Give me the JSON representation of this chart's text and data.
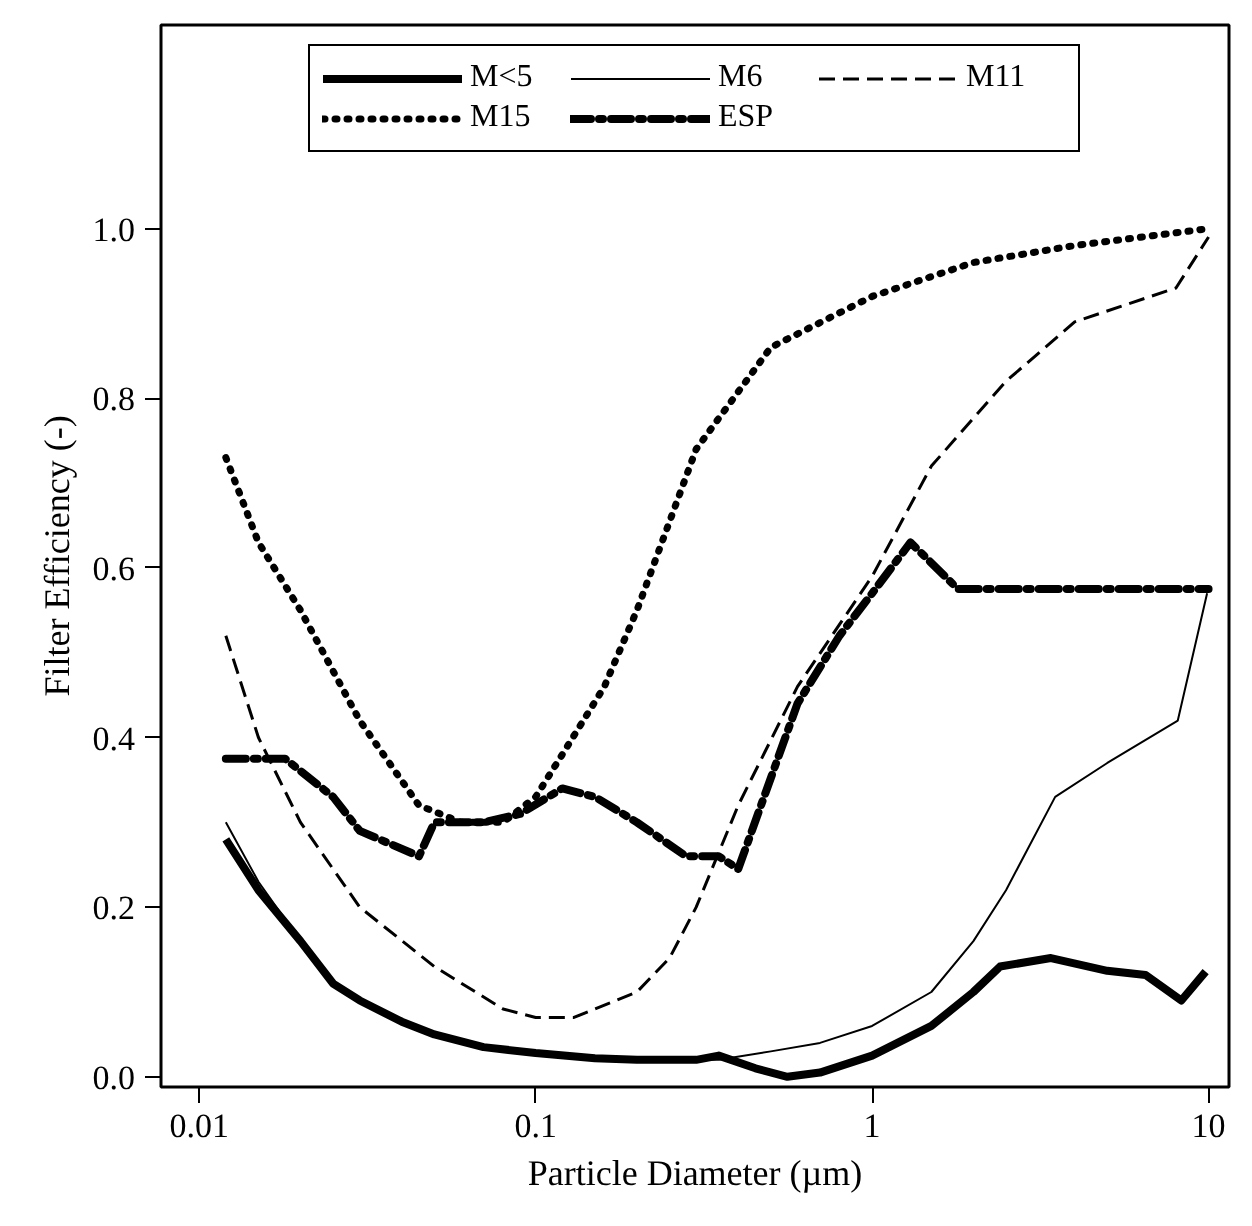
{
  "chart_data": {
    "type": "line",
    "xlabel": "Particle Diameter (µm)",
    "ylabel": "Filter Efficiency (-)",
    "log": "x",
    "xlim": [
      0.0077,
      11.5
    ],
    "xticks": [
      0.01,
      0.1,
      1,
      10
    ],
    "ylim": [
      -0.012,
      1.24
    ],
    "yticks": [
      {
        "value": 0,
        "label": "0.0"
      },
      {
        "value": 0.2,
        "label": "0.2"
      },
      {
        "value": 0.4,
        "label": "0.4"
      },
      {
        "value": 0.6,
        "label": "0.6"
      },
      {
        "value": 0.8,
        "label": "0.8"
      },
      {
        "value": 1.0,
        "label": "1.0"
      }
    ],
    "grid": false,
    "legend": "top",
    "marker": "none",
    "series": [
      {
        "name": "M<5",
        "color": "#000000",
        "line_style": "solid",
        "x": [
          0.012,
          0.015,
          0.02,
          0.025,
          0.03,
          0.04,
          0.05,
          0.07,
          0.1,
          0.15,
          0.2,
          0.3,
          0.35,
          0.45,
          0.56,
          0.7,
          1,
          1.5,
          2,
          2.4,
          3.4,
          5,
          6.5,
          8.3,
          9.8
        ],
        "values": [
          0.28,
          0.22,
          0.16,
          0.11,
          0.09,
          0.065,
          0.05,
          0.035,
          0.028,
          0.022,
          0.02,
          0.02,
          0.025,
          0.01,
          0.0,
          0.005,
          0.025,
          0.06,
          0.1,
          0.13,
          0.14,
          0.125,
          0.12,
          0.09,
          0.124
        ]
      },
      {
        "name": "M6",
        "color": "#000000",
        "line_style": "solid",
        "x": [
          0.012,
          0.015,
          0.02,
          0.025,
          0.03,
          0.04,
          0.05,
          0.07,
          0.1,
          0.15,
          0.2,
          0.3,
          0.35,
          0.5,
          0.7,
          1,
          1.5,
          2,
          2.5,
          3.5,
          5,
          8.1,
          9.9
        ],
        "values": [
          0.3,
          0.23,
          0.16,
          0.11,
          0.09,
          0.065,
          0.05,
          0.035,
          0.028,
          0.022,
          0.02,
          0.02,
          0.02,
          0.03,
          0.04,
          0.06,
          0.1,
          0.16,
          0.22,
          0.33,
          0.37,
          0.42,
          0.57
        ]
      },
      {
        "name": "M11",
        "color": "#000000",
        "line_style": "dashed",
        "x": [
          0.012,
          0.015,
          0.02,
          0.03,
          0.05,
          0.08,
          0.1,
          0.13,
          0.2,
          0.25,
          0.3,
          0.4,
          0.6,
          1,
          1.5,
          2.5,
          4,
          8,
          10
        ],
        "values": [
          0.52,
          0.4,
          0.3,
          0.2,
          0.13,
          0.08,
          0.07,
          0.07,
          0.1,
          0.14,
          0.2,
          0.32,
          0.46,
          0.59,
          0.72,
          0.82,
          0.89,
          0.93,
          0.99
        ]
      },
      {
        "name": "M15",
        "color": "#000000",
        "line_style": "dotted",
        "x": [
          0.012,
          0.015,
          0.02,
          0.03,
          0.045,
          0.06,
          0.08,
          0.1,
          0.12,
          0.16,
          0.2,
          0.3,
          0.5,
          1,
          2,
          4,
          10
        ],
        "values": [
          0.73,
          0.63,
          0.55,
          0.42,
          0.32,
          0.3,
          0.3,
          0.33,
          0.38,
          0.46,
          0.55,
          0.74,
          0.86,
          0.92,
          0.96,
          0.98,
          1.0
        ]
      },
      {
        "name": "ESP",
        "color": "#000000",
        "line_style": "dashdot",
        "x": [
          0.012,
          0.018,
          0.025,
          0.03,
          0.045,
          0.05,
          0.07,
          0.09,
          0.12,
          0.15,
          0.2,
          0.28,
          0.35,
          0.4,
          0.6,
          0.8,
          1,
          1.3,
          1.8,
          10
        ],
        "values": [
          0.375,
          0.375,
          0.33,
          0.29,
          0.26,
          0.3,
          0.3,
          0.31,
          0.34,
          0.33,
          0.3,
          0.26,
          0.26,
          0.245,
          0.44,
          0.52,
          0.57,
          0.63,
          0.575,
          0.575
        ]
      }
    ]
  }
}
